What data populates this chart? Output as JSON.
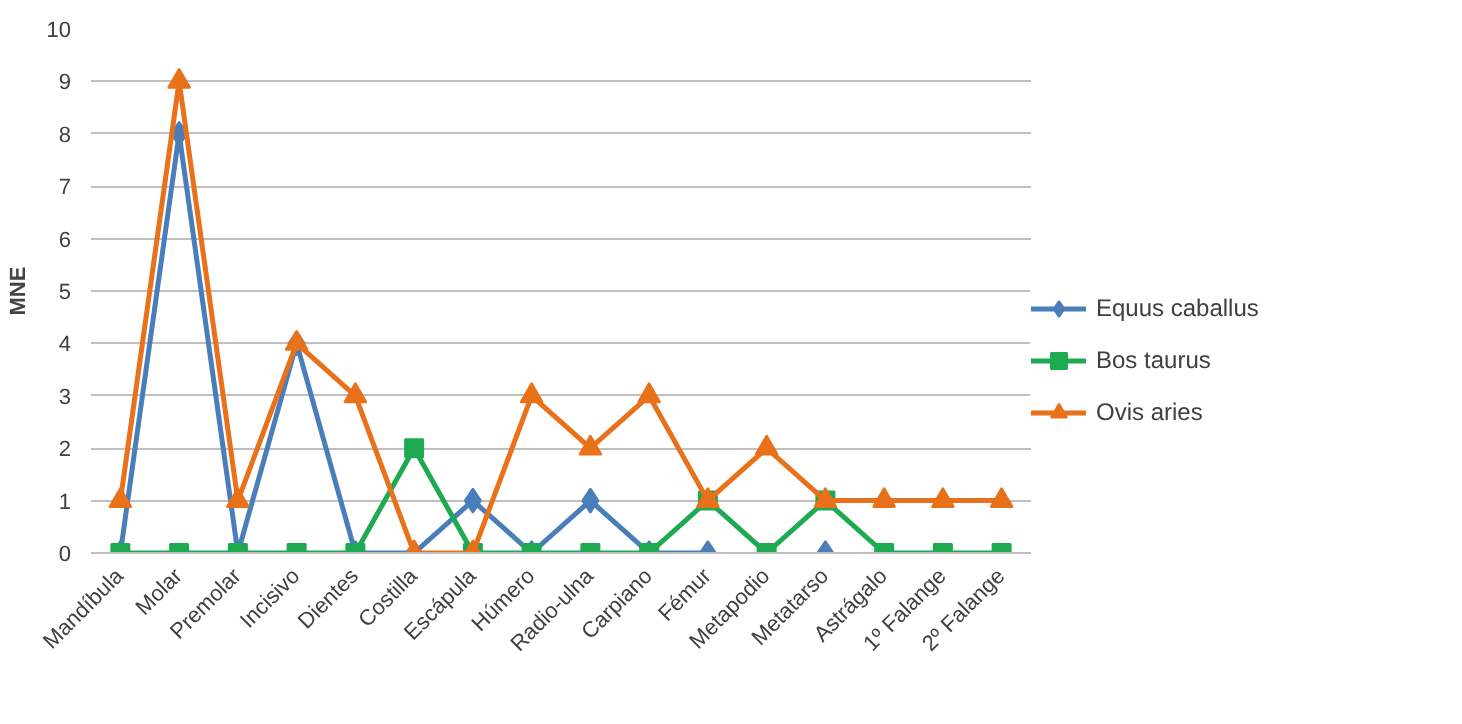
{
  "chart_data": {
    "type": "line",
    "ylabel": "MNE",
    "categories": [
      "Mandíbula",
      "Molar",
      "Premolar",
      "Incisivo",
      "Dientes",
      "Costilla",
      "Escápula",
      "Húmero",
      "Radio-ulna",
      "Carpiano",
      "Fémur",
      "Metapodio",
      "Metatarso",
      "Astrágalo",
      "1º Falange",
      "2º Falange"
    ],
    "series": [
      {
        "name": "Equus caballus",
        "color": "#4a7ebb",
        "marker": "diamond",
        "values": [
          0,
          8,
          0,
          4,
          0,
          0,
          1,
          0,
          1,
          0,
          0,
          null,
          0,
          null,
          null,
          null
        ]
      },
      {
        "name": "Bos taurus",
        "color": "#1eaa50",
        "marker": "square",
        "values": [
          0,
          0,
          0,
          0,
          0,
          2,
          0,
          0,
          0,
          0,
          1,
          0,
          1,
          0,
          0,
          0
        ]
      },
      {
        "name": "Ovis aries",
        "color": "#e8711a",
        "marker": "triangle",
        "values": [
          1,
          9,
          1,
          4,
          3,
          0,
          0,
          3,
          2,
          3,
          1,
          2,
          1,
          1,
          1,
          1
        ]
      }
    ],
    "ylim": [
      0,
      10
    ],
    "yticks": [
      0,
      1,
      2,
      3,
      4,
      5,
      6,
      7,
      8,
      9,
      10
    ],
    "grid": "y",
    "legend": "right"
  }
}
